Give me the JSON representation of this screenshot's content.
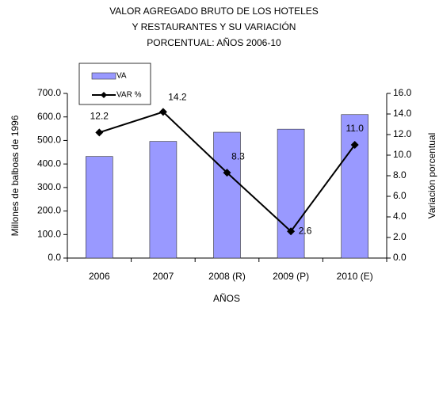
{
  "chart_data": {
    "type": "bar-line",
    "title": [
      "VALOR AGREGADO BRUTO DE LOS HOTELES",
      "Y RESTAURANTES Y SU VARIACIÓN",
      "PORCENTUAL: AÑOS  2006-10"
    ],
    "x_label": "AÑOS",
    "y_label": "Millones de balboas de 1996",
    "y2_label": "Variación porcentual",
    "categories": [
      "2006",
      "2007",
      "2008 (R)",
      "2009 (P)",
      "2010 (E)"
    ],
    "series": [
      {
        "name": "VA",
        "type": "bar",
        "color": "#9999ff",
        "values": [
          432,
          496,
          535,
          548,
          610
        ]
      },
      {
        "name": "VAR %",
        "type": "line",
        "axis": "y2",
        "color": "#000000",
        "values": [
          12.2,
          14.2,
          8.3,
          2.6,
          11.0
        ],
        "value_labels": [
          "12.2",
          "14.2",
          "8.3",
          "2.6",
          "11.0"
        ]
      }
    ],
    "ylim": [
      0,
      700
    ],
    "yticks": [
      {
        "value": 0,
        "label": "0.0"
      },
      {
        "value": 100,
        "label": "100.0"
      },
      {
        "value": 200,
        "label": "200.0"
      },
      {
        "value": 300,
        "label": "300.0"
      },
      {
        "value": 400,
        "label": "400.0"
      },
      {
        "value": 500,
        "label": "500.0"
      },
      {
        "value": 600,
        "label": "600.0"
      },
      {
        "value": 700,
        "label": "700.0"
      }
    ],
    "y2lim": [
      0,
      16
    ],
    "y2ticks": [
      {
        "value": 0,
        "label": "0.0"
      },
      {
        "value": 2,
        "label": "2.0"
      },
      {
        "value": 4,
        "label": "4.0"
      },
      {
        "value": 6,
        "label": "6.0"
      },
      {
        "value": 8,
        "label": "8.0"
      },
      {
        "value": 10,
        "label": "10.0"
      },
      {
        "value": 12,
        "label": "12.0"
      },
      {
        "value": 14,
        "label": "14.0"
      },
      {
        "value": 16,
        "label": "16.0"
      }
    ],
    "legend": "top-left"
  }
}
